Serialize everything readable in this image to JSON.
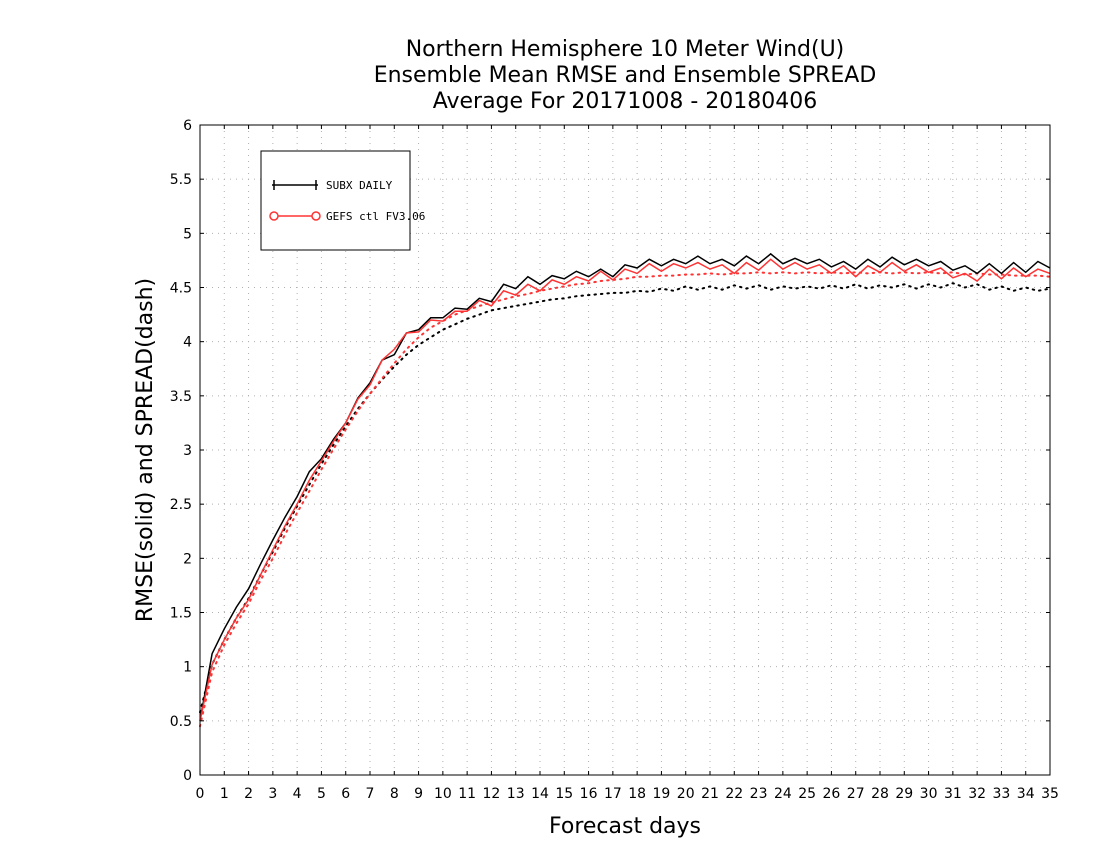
{
  "chart_data": {
    "type": "line",
    "title": [
      "Northern Hemisphere 10 Meter Wind(U)",
      "Ensemble Mean RMSE and Ensemble SPREAD",
      "Average For 20171008 - 20180406"
    ],
    "xlabel": "Forecast days",
    "ylabel": "RMSE(solid) and SPREAD(dash)",
    "xlim": [
      0,
      35
    ],
    "ylim": [
      0,
      6
    ],
    "x_ticks": [
      0,
      1,
      2,
      3,
      4,
      5,
      6,
      7,
      8,
      9,
      10,
      11,
      12,
      13,
      14,
      15,
      16,
      17,
      18,
      19,
      20,
      21,
      22,
      23,
      24,
      25,
      26,
      27,
      28,
      29,
      30,
      31,
      32,
      33,
      34,
      35
    ],
    "y_ticks": [
      0,
      0.5,
      1,
      1.5,
      2,
      2.5,
      3,
      3.5,
      4,
      4.5,
      5,
      5.5,
      6
    ],
    "y_tick_labels": [
      "0",
      "0.5",
      "1",
      "1.5",
      "2",
      "2.5",
      "3",
      "3.5",
      "4",
      "4.5",
      "5",
      "5.5",
      "6"
    ],
    "grid": true,
    "legend_position": "top-left",
    "series": [
      {
        "name": "SUBX DAILY",
        "color": "#000000",
        "marker": "plus",
        "rmse": [
          [
            0,
            0.5
          ],
          [
            0.5,
            1.12
          ],
          [
            1,
            1.35
          ],
          [
            1.5,
            1.55
          ],
          [
            2,
            1.72
          ],
          [
            2.5,
            1.95
          ],
          [
            3,
            2.17
          ],
          [
            3.5,
            2.38
          ],
          [
            4,
            2.57
          ],
          [
            4.5,
            2.8
          ],
          [
            5,
            2.92
          ],
          [
            5.5,
            3.1
          ],
          [
            6,
            3.25
          ],
          [
            6.5,
            3.48
          ],
          [
            7,
            3.62
          ],
          [
            7.5,
            3.83
          ],
          [
            8,
            3.88
          ],
          [
            8.5,
            4.08
          ],
          [
            9,
            4.11
          ],
          [
            9.5,
            4.22
          ],
          [
            10,
            4.22
          ],
          [
            10.5,
            4.31
          ],
          [
            11,
            4.3
          ],
          [
            11.5,
            4.4
          ],
          [
            12,
            4.37
          ],
          [
            12.5,
            4.53
          ],
          [
            13,
            4.49
          ],
          [
            13.5,
            4.6
          ],
          [
            14,
            4.53
          ],
          [
            14.5,
            4.61
          ],
          [
            15,
            4.58
          ],
          [
            15.5,
            4.65
          ],
          [
            16,
            4.6
          ],
          [
            16.5,
            4.67
          ],
          [
            17,
            4.6
          ],
          [
            17.5,
            4.71
          ],
          [
            18,
            4.68
          ],
          [
            18.5,
            4.76
          ],
          [
            19,
            4.7
          ],
          [
            19.5,
            4.76
          ],
          [
            20,
            4.72
          ],
          [
            20.5,
            4.79
          ],
          [
            21,
            4.72
          ],
          [
            21.5,
            4.76
          ],
          [
            22,
            4.7
          ],
          [
            22.5,
            4.79
          ],
          [
            23,
            4.72
          ],
          [
            23.5,
            4.81
          ],
          [
            24,
            4.72
          ],
          [
            24.5,
            4.77
          ],
          [
            25,
            4.72
          ],
          [
            25.5,
            4.76
          ],
          [
            26,
            4.69
          ],
          [
            26.5,
            4.74
          ],
          [
            27,
            4.67
          ],
          [
            27.5,
            4.76
          ],
          [
            28,
            4.69
          ],
          [
            28.5,
            4.78
          ],
          [
            29,
            4.71
          ],
          [
            29.5,
            4.76
          ],
          [
            30,
            4.7
          ],
          [
            30.5,
            4.74
          ],
          [
            31,
            4.66
          ],
          [
            31.5,
            4.7
          ],
          [
            32,
            4.63
          ],
          [
            32.5,
            4.72
          ],
          [
            33,
            4.63
          ],
          [
            33.5,
            4.73
          ],
          [
            34,
            4.64
          ],
          [
            34.5,
            4.74
          ],
          [
            35,
            4.68
          ]
        ],
        "spread": [
          [
            0,
            0.58
          ],
          [
            0.5,
            1.02
          ],
          [
            1,
            1.25
          ],
          [
            1.5,
            1.45
          ],
          [
            2,
            1.63
          ],
          [
            2.5,
            1.85
          ],
          [
            3,
            2.06
          ],
          [
            3.5,
            2.28
          ],
          [
            4,
            2.48
          ],
          [
            4.5,
            2.68
          ],
          [
            5,
            2.87
          ],
          [
            5.5,
            3.05
          ],
          [
            6,
            3.22
          ],
          [
            6.5,
            3.38
          ],
          [
            7,
            3.52
          ],
          [
            7.5,
            3.65
          ],
          [
            8,
            3.77
          ],
          [
            8.5,
            3.88
          ],
          [
            9,
            3.97
          ],
          [
            9.5,
            4.04
          ],
          [
            10,
            4.11
          ],
          [
            10.5,
            4.16
          ],
          [
            11,
            4.21
          ],
          [
            11.5,
            4.25
          ],
          [
            12,
            4.29
          ],
          [
            12.5,
            4.31
          ],
          [
            13,
            4.33
          ],
          [
            13.5,
            4.35
          ],
          [
            14,
            4.37
          ],
          [
            14.5,
            4.39
          ],
          [
            15,
            4.4
          ],
          [
            15.5,
            4.42
          ],
          [
            16,
            4.43
          ],
          [
            16.5,
            4.44
          ],
          [
            17,
            4.45
          ],
          [
            17.5,
            4.45
          ],
          [
            18,
            4.47
          ],
          [
            18.5,
            4.46
          ],
          [
            19,
            4.49
          ],
          [
            19.5,
            4.47
          ],
          [
            20,
            4.51
          ],
          [
            20.5,
            4.48
          ],
          [
            21,
            4.51
          ],
          [
            21.5,
            4.48
          ],
          [
            22,
            4.52
          ],
          [
            22.5,
            4.49
          ],
          [
            23,
            4.52
          ],
          [
            23.5,
            4.48
          ],
          [
            24,
            4.51
          ],
          [
            24.5,
            4.49
          ],
          [
            25,
            4.51
          ],
          [
            25.5,
            4.49
          ],
          [
            26,
            4.52
          ],
          [
            26.5,
            4.49
          ],
          [
            27,
            4.53
          ],
          [
            27.5,
            4.49
          ],
          [
            28,
            4.52
          ],
          [
            28.5,
            4.5
          ],
          [
            29,
            4.53
          ],
          [
            29.5,
            4.49
          ],
          [
            30,
            4.53
          ],
          [
            30.5,
            4.5
          ],
          [
            31,
            4.54
          ],
          [
            31.5,
            4.5
          ],
          [
            32,
            4.53
          ],
          [
            32.5,
            4.48
          ],
          [
            33,
            4.51
          ],
          [
            33.5,
            4.47
          ],
          [
            34,
            4.5
          ],
          [
            34.5,
            4.47
          ],
          [
            35,
            4.49
          ]
        ]
      },
      {
        "name": "GEFS ctl FV3.06",
        "color": "#ff3333",
        "marker": "circle",
        "rmse": [
          [
            0,
            0.5
          ],
          [
            0.5,
            1.02
          ],
          [
            1,
            1.25
          ],
          [
            1.5,
            1.45
          ],
          [
            2,
            1.62
          ],
          [
            2.5,
            1.85
          ],
          [
            3,
            2.08
          ],
          [
            3.5,
            2.3
          ],
          [
            4,
            2.5
          ],
          [
            4.5,
            2.72
          ],
          [
            5,
            2.9
          ],
          [
            5.5,
            3.08
          ],
          [
            6,
            3.25
          ],
          [
            6.5,
            3.47
          ],
          [
            7,
            3.6
          ],
          [
            7.5,
            3.83
          ],
          [
            8,
            3.93
          ],
          [
            8.5,
            4.08
          ],
          [
            9,
            4.09
          ],
          [
            9.5,
            4.2
          ],
          [
            10,
            4.19
          ],
          [
            10.5,
            4.28
          ],
          [
            11,
            4.28
          ],
          [
            11.5,
            4.38
          ],
          [
            12,
            4.33
          ],
          [
            12.5,
            4.47
          ],
          [
            13,
            4.43
          ],
          [
            13.5,
            4.53
          ],
          [
            14,
            4.47
          ],
          [
            14.5,
            4.57
          ],
          [
            15,
            4.53
          ],
          [
            15.5,
            4.6
          ],
          [
            16,
            4.56
          ],
          [
            16.5,
            4.65
          ],
          [
            17,
            4.57
          ],
          [
            17.5,
            4.67
          ],
          [
            18,
            4.63
          ],
          [
            18.5,
            4.72
          ],
          [
            19,
            4.65
          ],
          [
            19.5,
            4.72
          ],
          [
            20,
            4.68
          ],
          [
            20.5,
            4.73
          ],
          [
            21,
            4.67
          ],
          [
            21.5,
            4.71
          ],
          [
            22,
            4.63
          ],
          [
            22.5,
            4.73
          ],
          [
            23,
            4.66
          ],
          [
            23.5,
            4.76
          ],
          [
            24,
            4.67
          ],
          [
            24.5,
            4.73
          ],
          [
            25,
            4.67
          ],
          [
            25.5,
            4.71
          ],
          [
            26,
            4.63
          ],
          [
            26.5,
            4.7
          ],
          [
            27,
            4.6
          ],
          [
            27.5,
            4.7
          ],
          [
            28,
            4.64
          ],
          [
            28.5,
            4.73
          ],
          [
            29,
            4.65
          ],
          [
            29.5,
            4.71
          ],
          [
            30,
            4.64
          ],
          [
            30.5,
            4.68
          ],
          [
            31,
            4.59
          ],
          [
            31.5,
            4.63
          ],
          [
            32,
            4.56
          ],
          [
            32.5,
            4.67
          ],
          [
            33,
            4.58
          ],
          [
            33.5,
            4.68
          ],
          [
            34,
            4.6
          ],
          [
            34.5,
            4.67
          ],
          [
            35,
            4.63
          ]
        ],
        "spread": [
          [
            0,
            0.45
          ],
          [
            0.5,
            0.95
          ],
          [
            1,
            1.2
          ],
          [
            1.5,
            1.4
          ],
          [
            2,
            1.58
          ],
          [
            2.5,
            1.8
          ],
          [
            3,
            2.0
          ],
          [
            3.5,
            2.22
          ],
          [
            4,
            2.42
          ],
          [
            4.5,
            2.62
          ],
          [
            5,
            2.82
          ],
          [
            5.5,
            3.01
          ],
          [
            6,
            3.19
          ],
          [
            6.5,
            3.36
          ],
          [
            7,
            3.52
          ],
          [
            7.5,
            3.66
          ],
          [
            8,
            3.8
          ],
          [
            8.5,
            3.93
          ],
          [
            9,
            4.04
          ],
          [
            9.5,
            4.13
          ],
          [
            10,
            4.19
          ],
          [
            10.5,
            4.25
          ],
          [
            11,
            4.29
          ],
          [
            11.5,
            4.33
          ],
          [
            12,
            4.36
          ],
          [
            12.5,
            4.39
          ],
          [
            13,
            4.42
          ],
          [
            13.5,
            4.44
          ],
          [
            14,
            4.47
          ],
          [
            14.5,
            4.49
          ],
          [
            15,
            4.51
          ],
          [
            15.5,
            4.53
          ],
          [
            16,
            4.54
          ],
          [
            16.5,
            4.56
          ],
          [
            17,
            4.57
          ],
          [
            17.5,
            4.58
          ],
          [
            18,
            4.6
          ],
          [
            18.5,
            4.6
          ],
          [
            19,
            4.61
          ],
          [
            19.5,
            4.61
          ],
          [
            20,
            4.62
          ],
          [
            20.5,
            4.62
          ],
          [
            21,
            4.63
          ],
          [
            21.5,
            4.62
          ],
          [
            22,
            4.63
          ],
          [
            22.5,
            4.63
          ],
          [
            23,
            4.64
          ],
          [
            23.5,
            4.63
          ],
          [
            24,
            4.64
          ],
          [
            24.5,
            4.63
          ],
          [
            25,
            4.64
          ],
          [
            25.5,
            4.63
          ],
          [
            26,
            4.64
          ],
          [
            26.5,
            4.63
          ],
          [
            27,
            4.64
          ],
          [
            27.5,
            4.63
          ],
          [
            28,
            4.64
          ],
          [
            28.5,
            4.63
          ],
          [
            29,
            4.64
          ],
          [
            29.5,
            4.63
          ],
          [
            30,
            4.64
          ],
          [
            30.5,
            4.63
          ],
          [
            31,
            4.64
          ],
          [
            31.5,
            4.62
          ],
          [
            32,
            4.63
          ],
          [
            32.5,
            4.62
          ],
          [
            33,
            4.62
          ],
          [
            33.5,
            4.61
          ],
          [
            34,
            4.61
          ],
          [
            34.5,
            4.61
          ],
          [
            35,
            4.6
          ]
        ]
      }
    ]
  }
}
